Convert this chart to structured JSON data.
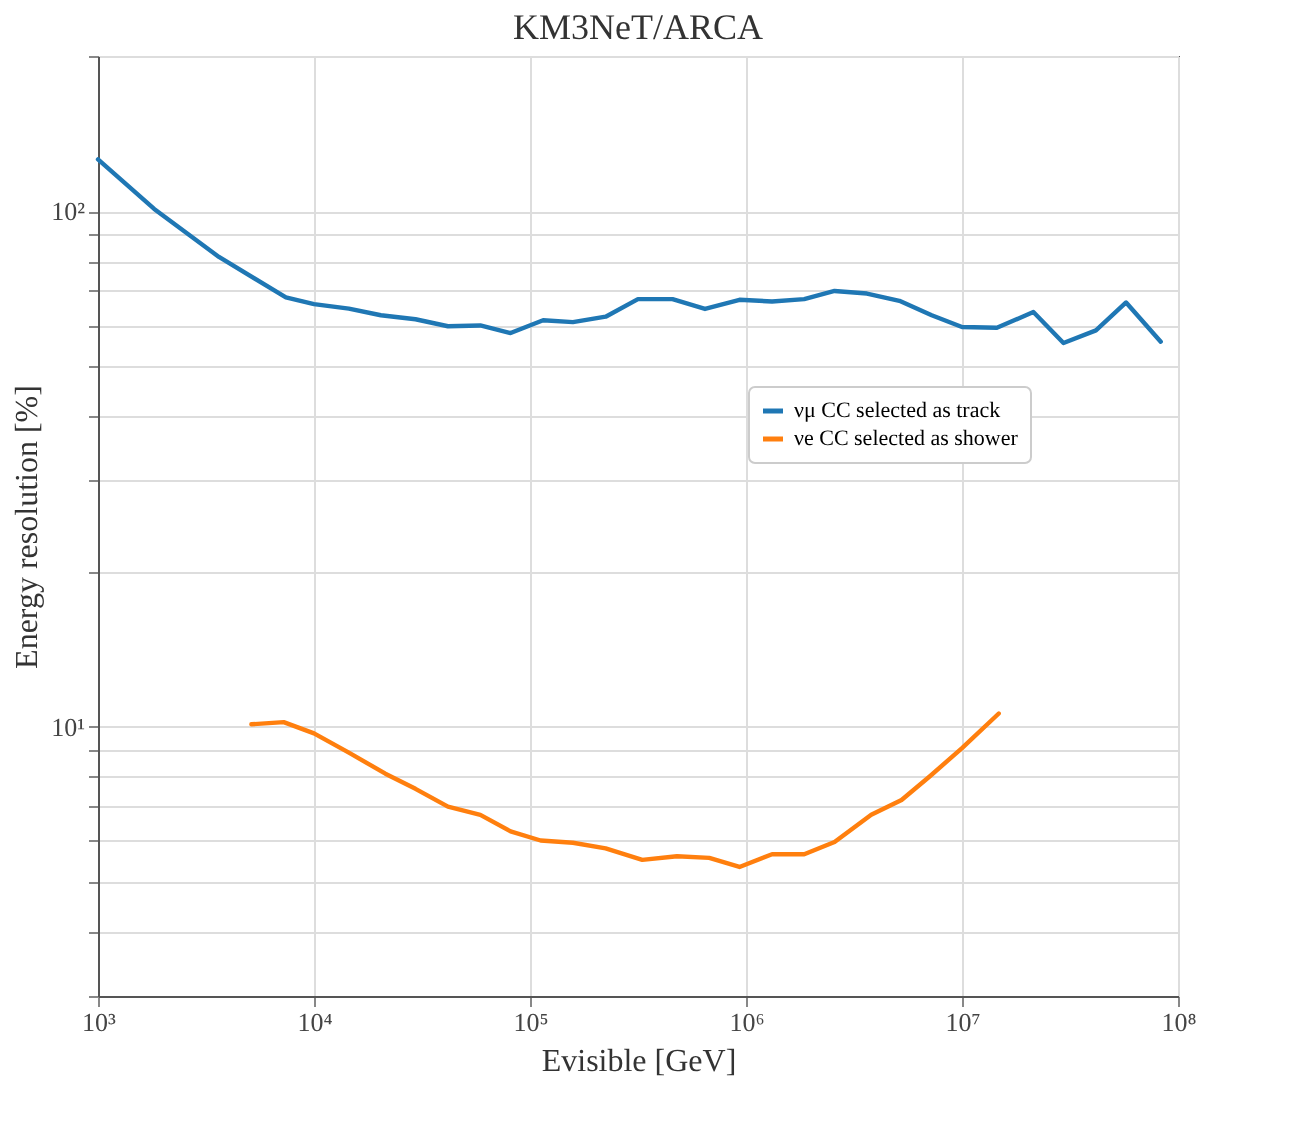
{
  "chart_data": {
    "type": "line",
    "title": "KM3NeT/ARCA",
    "xlabel": "Evisible [GeV]",
    "ylabel": "Energy resolution [%]",
    "log": "xy",
    "grid": true,
    "legend": "right",
    "line_style": "solid",
    "marker": "none",
    "xlim": [
      1000,
      100000000
    ],
    "ylim": [
      3,
      200
    ],
    "xticks": [
      {
        "value": 1000,
        "label": "10³"
      },
      {
        "value": 10000,
        "label": "10⁴"
      },
      {
        "value": 100000,
        "label": "10⁵"
      },
      {
        "value": 1000000,
        "label": "10⁶"
      },
      {
        "value": 10000000,
        "label": "10⁷"
      },
      {
        "value": 100000000,
        "label": "10⁸"
      }
    ],
    "yticks": [
      {
        "value": 3,
        "label": null
      },
      {
        "value": 4,
        "label": null
      },
      {
        "value": 5,
        "label": null
      },
      {
        "value": 6,
        "label": null
      },
      {
        "value": 7,
        "label": null
      },
      {
        "value": 8,
        "label": null
      },
      {
        "value": 9,
        "label": null
      },
      {
        "value": 10,
        "label": "10¹"
      },
      {
        "value": 20,
        "label": null
      },
      {
        "value": 30,
        "label": null
      },
      {
        "value": 40,
        "label": null
      },
      {
        "value": 50,
        "label": null
      },
      {
        "value": 60,
        "label": null
      },
      {
        "value": 70,
        "label": null
      },
      {
        "value": 80,
        "label": null
      },
      {
        "value": 90,
        "label": null
      },
      {
        "value": 100,
        "label": "10²"
      },
      {
        "value": 200,
        "label": null
      }
    ],
    "series": [
      {
        "name": "νμ CC selected as track",
        "color": "#1f77b4",
        "x": [
          1000,
          1820,
          3630,
          7410,
          10000,
          14500,
          20400,
          29500,
          41700,
          58900,
          81300,
          115000,
          158000,
          224000,
          316000,
          457000,
          646000,
          933000,
          1320000,
          1860000,
          2570000,
          3630000,
          5130000,
          7240000,
          10000000,
          14500000,
          21400000,
          29500000,
          41700000,
          57500000,
          83200000
        ],
        "values": [
          126,
          101,
          81.5,
          68,
          66,
          64.7,
          62.8,
          61.7,
          59.8,
          60,
          58,
          61.4,
          60.9,
          62.4,
          67.5,
          67.5,
          64.6,
          67.3,
          66.8,
          67.5,
          70,
          69.2,
          67,
          62.8,
          59.6,
          59.4,
          63.7,
          55.5,
          58.7,
          66.5,
          55.8
        ]
      },
      {
        "name": "νe CC selected as shower",
        "color": "#ff7f0e",
        "x": [
          5130,
          7240,
          10000,
          14500,
          21400,
          29500,
          41700,
          58900,
          81300,
          112000,
          158000,
          224000,
          331000,
          479000,
          676000,
          933000,
          1320000,
          1860000,
          2570000,
          3800000,
          5250000,
          7080000,
          10000000,
          14800000
        ],
        "values": [
          10.1,
          10.2,
          9.7,
          8.9,
          8.1,
          7.57,
          6.99,
          6.74,
          6.26,
          6.01,
          5.95,
          5.8,
          5.51,
          5.6,
          5.56,
          5.34,
          5.65,
          5.65,
          5.97,
          6.74,
          7.2,
          8.0,
          9.08,
          10.6
        ]
      }
    ]
  }
}
